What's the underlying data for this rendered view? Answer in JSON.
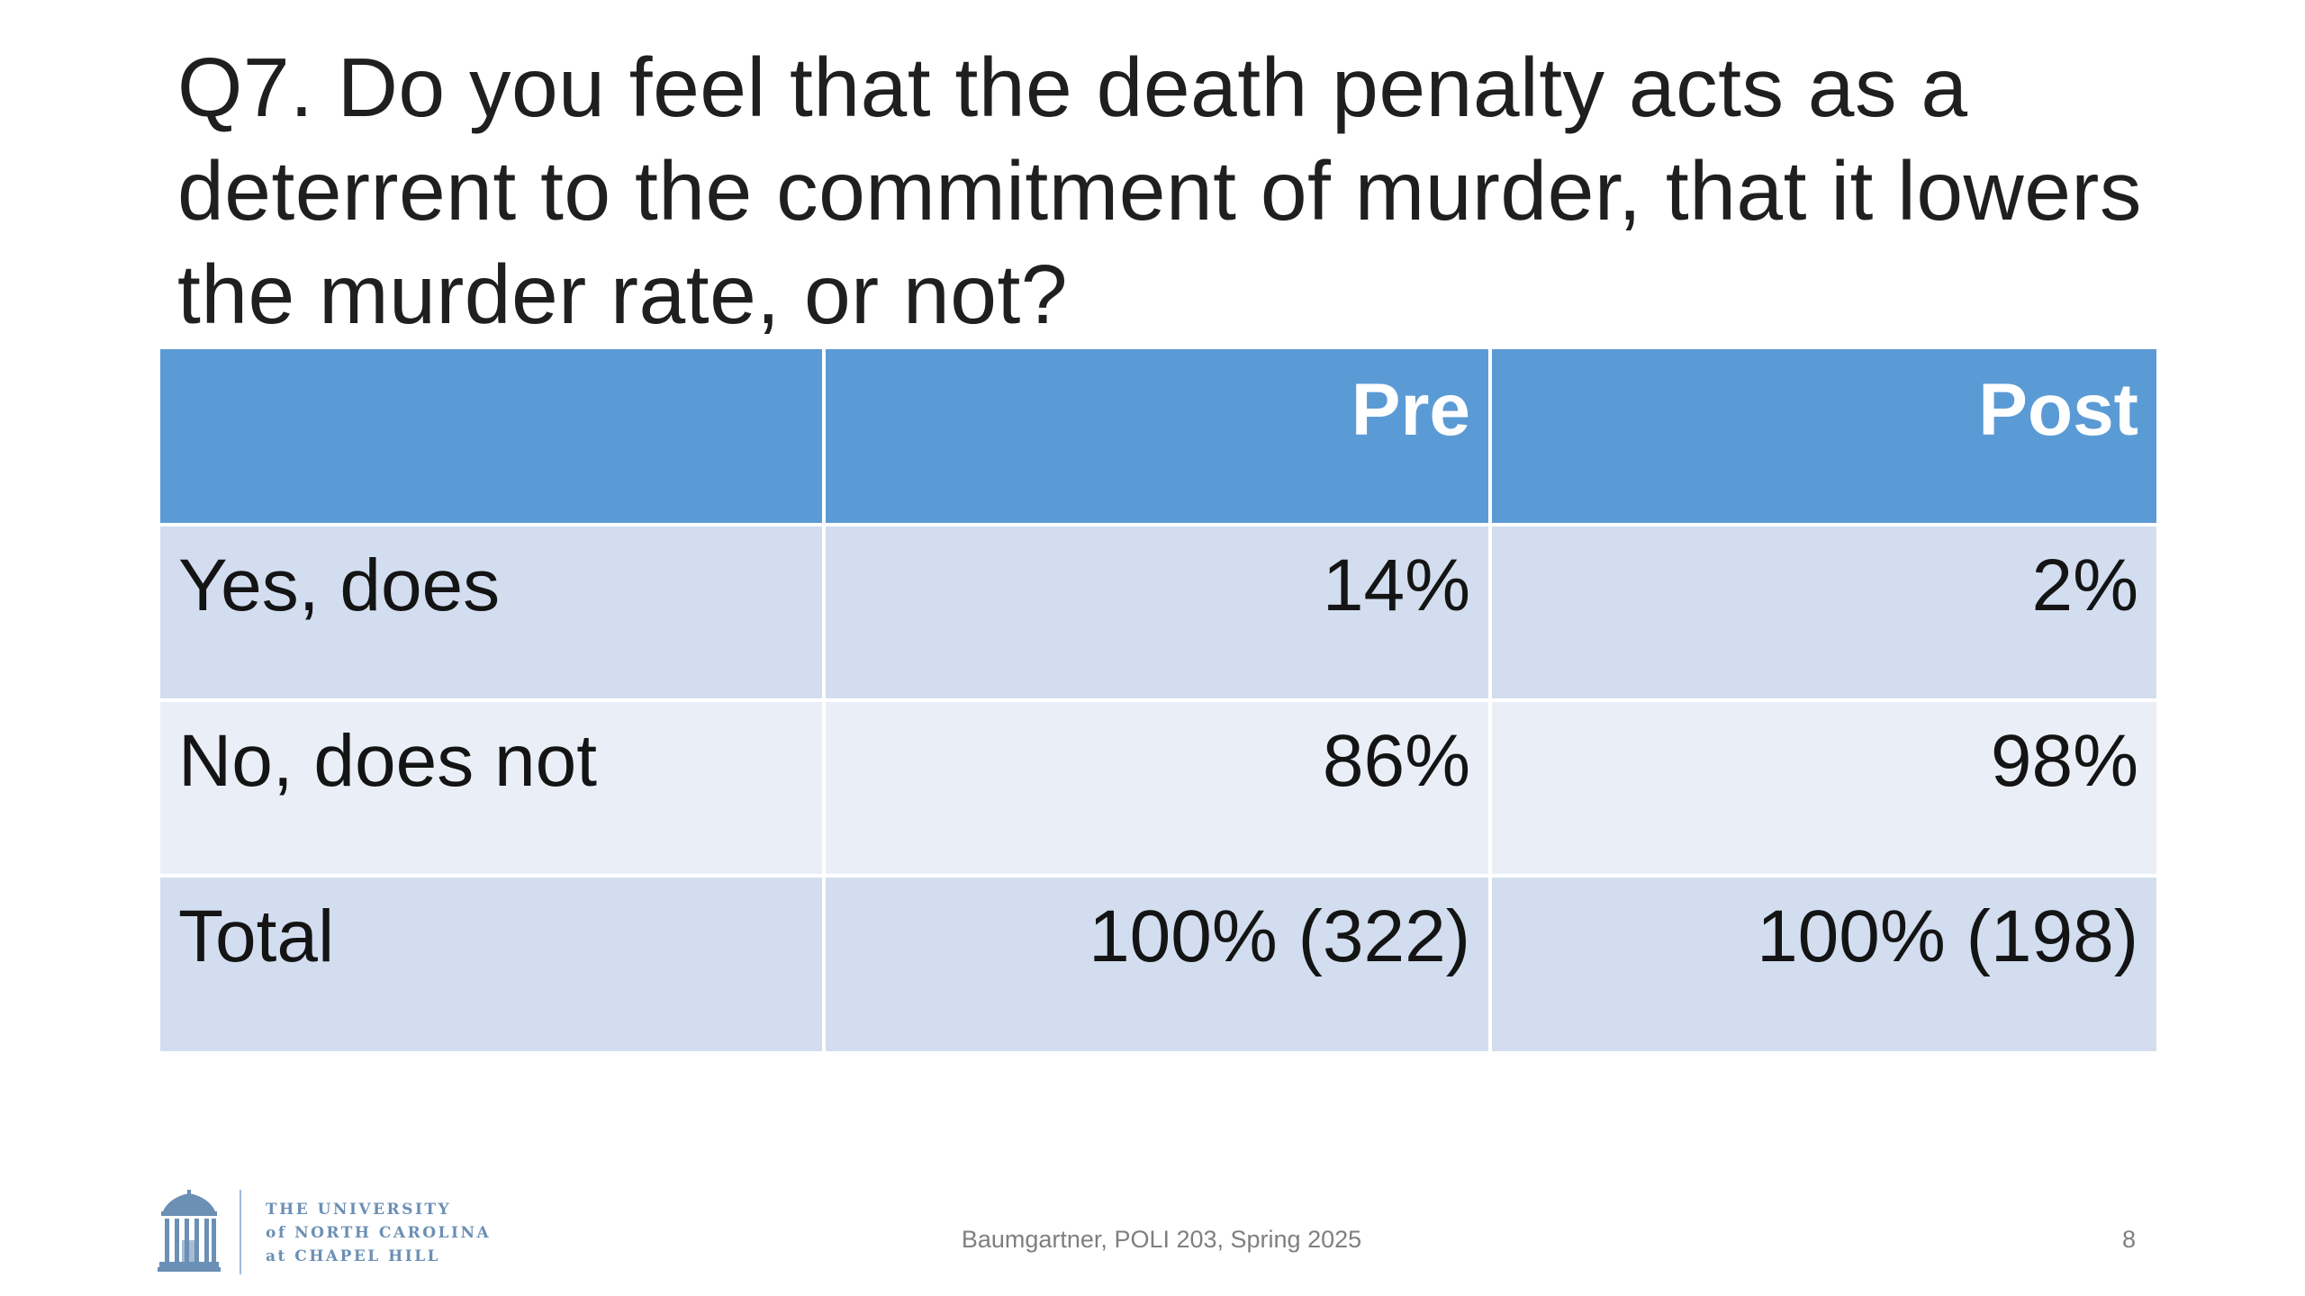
{
  "slide": {
    "title": "Q7. Do you feel that the death penalty acts as a deterrent to the commitment of murder, that it lowers the murder rate, or not?"
  },
  "table": {
    "columns": [
      "",
      "Pre",
      "Post"
    ],
    "rows": [
      {
        "label": "Yes, does",
        "pre": "14%",
        "post": "2%"
      },
      {
        "label": "No, does not",
        "pre": "86%",
        "post": "98%"
      },
      {
        "label": "Total",
        "pre": "100% (322)",
        "post": "100% (198)"
      }
    ]
  },
  "footer": {
    "logo_lines": [
      "THE UNIVERSITY",
      "of NORTH CAROLINA",
      "at CHAPEL HILL"
    ],
    "logo_icon": "old-well-icon",
    "text": "Baumgartner, POLI 203, Spring 2025",
    "slide_number": "8"
  },
  "colors": {
    "header": "#5b9bd5",
    "band_dark": "#d2deef",
    "band_light": "#eaeff7",
    "logo": "#6b8fb5"
  }
}
